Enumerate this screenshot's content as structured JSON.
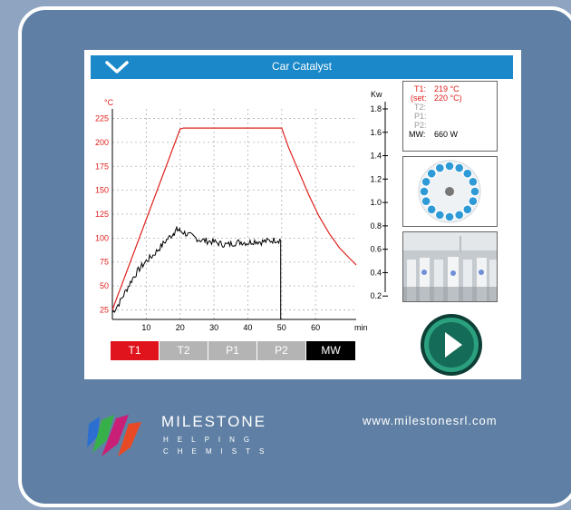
{
  "window": {
    "title": "Car Catalyst"
  },
  "chart_data": {
    "type": "line",
    "xlabel": "min",
    "ylabel_left": "°C",
    "ylabel_right": "Kw",
    "xlim": [
      0,
      72
    ],
    "ylim_left": [
      15,
      235
    ],
    "ylim_right": [
      0,
      1.8
    ],
    "x_ticks": [
      "10",
      "20",
      "30",
      "40",
      "50",
      "60"
    ],
    "y_ticks_left": [
      "225",
      "200",
      "175",
      "150",
      "125",
      "100",
      "75",
      "50",
      "25"
    ],
    "y_ticks_right": [
      "1.8",
      "1.6",
      "1.4",
      "1.2",
      "1.0",
      "0.8",
      "0.6",
      "0.4",
      "0.2"
    ],
    "series": [
      {
        "name": "T1",
        "color": "#e0201c",
        "x": [
          0,
          20,
          21,
          50,
          52,
          55,
          58,
          61,
          64,
          67,
          70,
          72
        ],
        "y": [
          25,
          214,
          215,
          215,
          195,
          170,
          145,
          123,
          105,
          90,
          79,
          72
        ]
      },
      {
        "name": "MW",
        "color": "#000000",
        "x": [
          0,
          2,
          4,
          6,
          8,
          10,
          12,
          14,
          16,
          18,
          19,
          20,
          22,
          24,
          26,
          28,
          30,
          32,
          34,
          36,
          38,
          40,
          42,
          44,
          46,
          48,
          49.7
        ],
        "y": [
          22,
          32,
          45,
          58,
          68,
          76,
          82,
          90,
          98,
          105,
          109,
          108,
          104,
          101,
          98,
          97,
          96,
          94,
          93,
          95,
          96,
          95,
          97,
          96,
          97,
          98,
          98
        ]
      }
    ],
    "mw_drop_x": 49.7
  },
  "legend": [
    {
      "label": "T1",
      "color": "#e0141c"
    },
    {
      "label": "T2",
      "color": "#b4b4b4"
    },
    {
      "label": "P1",
      "color": "#b4b4b4"
    },
    {
      "label": "P2",
      "color": "#b4b4b4"
    },
    {
      "label": "MW",
      "color": "#000000"
    }
  ],
  "readout": {
    "t1_label": "T1:",
    "t1_value": "219 °C",
    "set_label": "(set:",
    "set_value": "220 °C)",
    "t2_label": "T2:",
    "p1_label": "P1:",
    "p2_label": "P2:",
    "mw_label": "MW:",
    "mw_value": "660 W"
  },
  "carousel": {
    "vessel_count": 16,
    "vessel_color": "#2e9ad6",
    "hub_color": "#777777"
  },
  "play_button": {
    "accent": "#146b57"
  },
  "footer": {
    "brand": "MILESTONE",
    "tagline_1": "HELPING",
    "tagline_2": "CHEMISTS",
    "website": "www.milestonesrl.com"
  }
}
